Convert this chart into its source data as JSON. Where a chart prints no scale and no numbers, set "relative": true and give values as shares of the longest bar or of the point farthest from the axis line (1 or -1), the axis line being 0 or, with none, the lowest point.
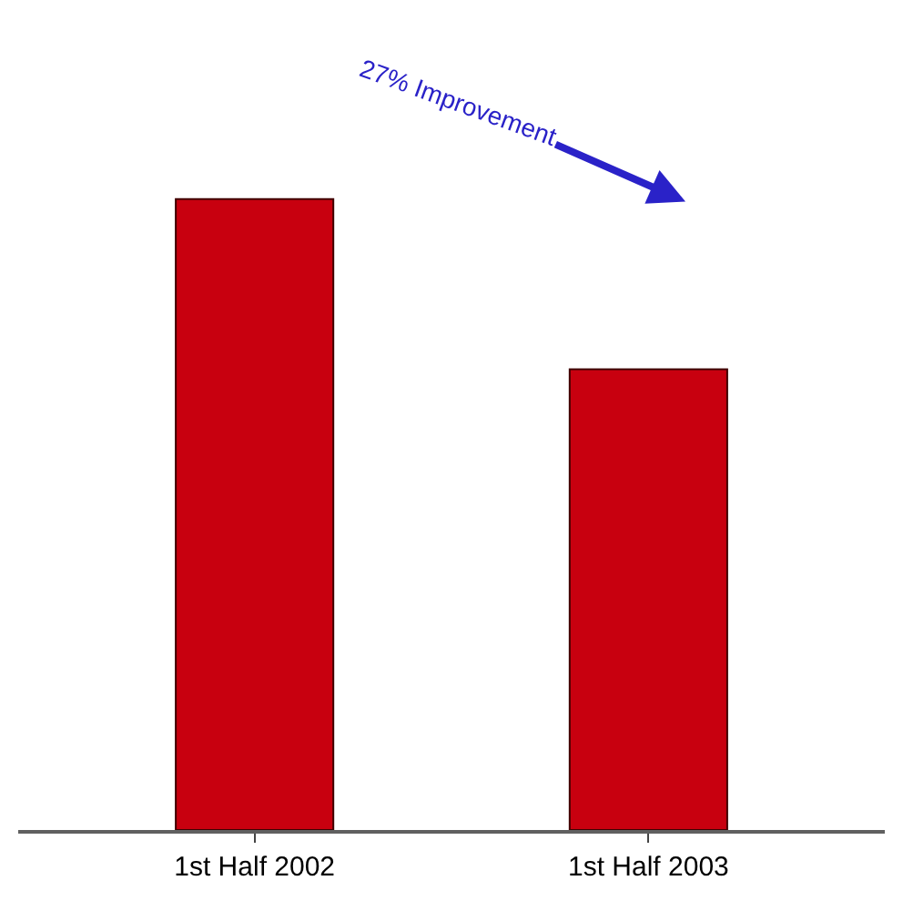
{
  "chart_data": {
    "type": "bar",
    "relative": true,
    "categories": [
      "1st Half 2002",
      "1st Half 2003"
    ],
    "values": [
      1,
      0.73
    ],
    "color": "#c8000f",
    "annotations": [
      "27% Improvement"
    ]
  }
}
